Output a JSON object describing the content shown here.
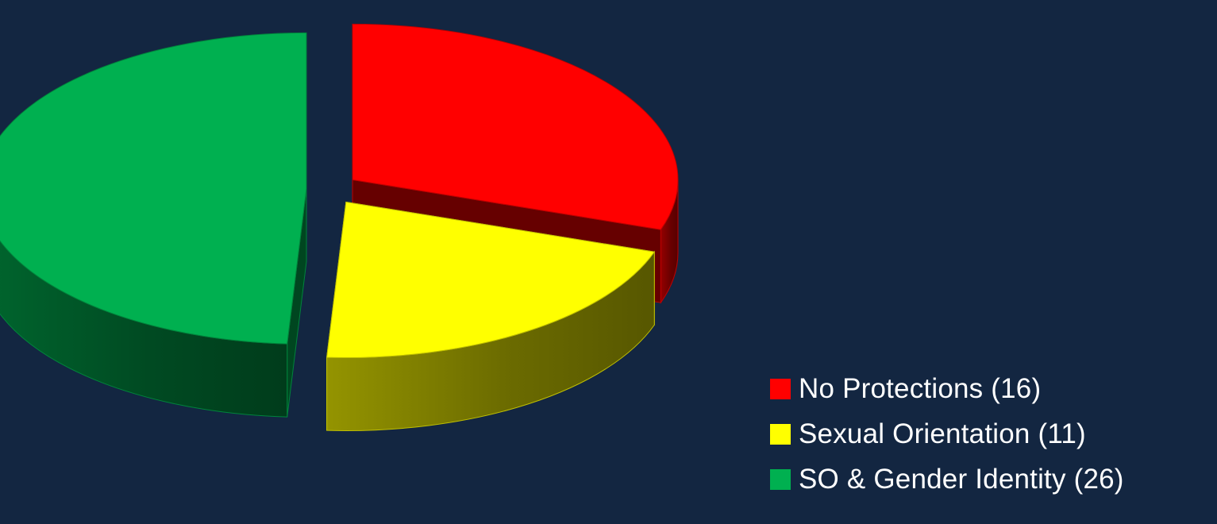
{
  "chart_data": {
    "type": "pie",
    "style": "3d-exploded",
    "categories": [
      "No Protections (16)",
      "Sexual Orientation (11)",
      "SO & Gender Identity (26)"
    ],
    "values": [
      16,
      11,
      26
    ],
    "colors": [
      "#ff0000",
      "#ffff00",
      "#00b050"
    ],
    "legend": "bottom-right",
    "title": ""
  }
}
